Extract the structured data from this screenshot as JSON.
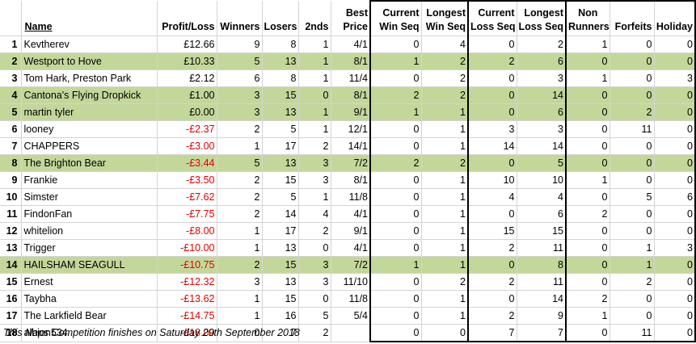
{
  "headers": {
    "num": "",
    "name": "Name",
    "profit_loss": "Profit/Loss",
    "winners": "Winners",
    "losers": "Losers",
    "seconds": "2nds",
    "best_price": [
      "Best",
      "Price"
    ],
    "current_win_seq": [
      "Current",
      "Win Seq"
    ],
    "longest_win_seq": [
      "Longest",
      "Win Seq"
    ],
    "current_loss_seq": [
      "Current",
      "Loss Seq"
    ],
    "longest_loss_seq": [
      "Longest",
      "Loss Seq"
    ],
    "non_runners": [
      "Non",
      "Runners"
    ],
    "forfeits": "Forfeits",
    "holiday": "Holiday"
  },
  "highlight_color": "#c4d79b",
  "negative_color": "#e00000",
  "rows": [
    {
      "num": "1",
      "name": "Kevtherev",
      "pl": "£12.66",
      "neg": false,
      "winners": "9",
      "losers": "8",
      "seconds": "1",
      "best": "4/1",
      "cws": "0",
      "lws": "4",
      "cls": "0",
      "lls": "2",
      "nr": "1",
      "forfeits": "0",
      "holiday": "0",
      "highlight": false
    },
    {
      "num": "2",
      "name": "Westport to Hove",
      "pl": "£10.33",
      "neg": false,
      "winners": "5",
      "losers": "13",
      "seconds": "1",
      "best": "8/1",
      "cws": "1",
      "lws": "2",
      "cls": "2",
      "lls": "6",
      "nr": "0",
      "forfeits": "0",
      "holiday": "0",
      "highlight": true
    },
    {
      "num": "3",
      "name": "Tom Hark, Preston Park",
      "pl": "£2.12",
      "neg": false,
      "winners": "6",
      "losers": "8",
      "seconds": "1",
      "best": "11/4",
      "cws": "0",
      "lws": "2",
      "cls": "0",
      "lls": "3",
      "nr": "1",
      "forfeits": "0",
      "holiday": "3",
      "highlight": false
    },
    {
      "num": "4",
      "name": "Cantona's Flying Dropkick",
      "pl": "£1.00",
      "neg": false,
      "winners": "3",
      "losers": "15",
      "seconds": "0",
      "best": "8/1",
      "cws": "2",
      "lws": "2",
      "cls": "0",
      "lls": "14",
      "nr": "0",
      "forfeits": "0",
      "holiday": "0",
      "highlight": true
    },
    {
      "num": "5",
      "name": "martin tyler",
      "pl": "£0.00",
      "neg": false,
      "winners": "3",
      "losers": "13",
      "seconds": "1",
      "best": "9/1",
      "cws": "1",
      "lws": "1",
      "cls": "0",
      "lls": "6",
      "nr": "0",
      "forfeits": "2",
      "holiday": "0",
      "highlight": true
    },
    {
      "num": "6",
      "name": "looney",
      "pl": "-£2.37",
      "neg": true,
      "winners": "2",
      "losers": "5",
      "seconds": "1",
      "best": "12/1",
      "cws": "0",
      "lws": "1",
      "cls": "3",
      "lls": "3",
      "nr": "0",
      "forfeits": "11",
      "holiday": "0",
      "highlight": false
    },
    {
      "num": "7",
      "name": "CHAPPERS",
      "pl": "-£3.00",
      "neg": true,
      "winners": "1",
      "losers": "17",
      "seconds": "2",
      "best": "14/1",
      "cws": "0",
      "lws": "1",
      "cls": "14",
      "lls": "14",
      "nr": "0",
      "forfeits": "0",
      "holiday": "0",
      "highlight": false
    },
    {
      "num": "8",
      "name": "The Brighton Bear",
      "pl": "-£3.44",
      "neg": true,
      "winners": "5",
      "losers": "13",
      "seconds": "3",
      "best": "7/2",
      "cws": "2",
      "lws": "2",
      "cls": "0",
      "lls": "5",
      "nr": "0",
      "forfeits": "0",
      "holiday": "0",
      "highlight": true
    },
    {
      "num": "9",
      "name": "Frankie",
      "pl": "-£3.50",
      "neg": true,
      "winners": "2",
      "losers": "15",
      "seconds": "3",
      "best": "8/1",
      "cws": "0",
      "lws": "1",
      "cls": "10",
      "lls": "10",
      "nr": "1",
      "forfeits": "0",
      "holiday": "0",
      "highlight": false
    },
    {
      "num": "10",
      "name": "Simster",
      "pl": "-£7.62",
      "neg": true,
      "winners": "2",
      "losers": "5",
      "seconds": "1",
      "best": "11/8",
      "cws": "0",
      "lws": "1",
      "cls": "4",
      "lls": "4",
      "nr": "0",
      "forfeits": "5",
      "holiday": "6",
      "highlight": false
    },
    {
      "num": "11",
      "name": "FindonFan",
      "pl": "-£7.75",
      "neg": true,
      "winners": "2",
      "losers": "14",
      "seconds": "4",
      "best": "4/1",
      "cws": "0",
      "lws": "1",
      "cls": "0",
      "lls": "6",
      "nr": "2",
      "forfeits": "0",
      "holiday": "0",
      "highlight": false
    },
    {
      "num": "12",
      "name": "whitelion",
      "pl": "-£8.00",
      "neg": true,
      "winners": "1",
      "losers": "17",
      "seconds": "2",
      "best": "9/1",
      "cws": "0",
      "lws": "1",
      "cls": "15",
      "lls": "15",
      "nr": "0",
      "forfeits": "0",
      "holiday": "0",
      "highlight": false
    },
    {
      "num": "13",
      "name": "Trigger",
      "pl": "-£10.00",
      "neg": true,
      "winners": "1",
      "losers": "13",
      "seconds": "0",
      "best": "4/1",
      "cws": "0",
      "lws": "1",
      "cls": "2",
      "lls": "11",
      "nr": "0",
      "forfeits": "1",
      "holiday": "3",
      "highlight": false
    },
    {
      "num": "14",
      "name": "HAILSHAM SEAGULL",
      "pl": "-£10.75",
      "neg": true,
      "winners": "2",
      "losers": "15",
      "seconds": "3",
      "best": "7/2",
      "cws": "1",
      "lws": "1",
      "cls": "0",
      "lls": "8",
      "nr": "0",
      "forfeits": "1",
      "holiday": "0",
      "highlight": true
    },
    {
      "num": "15",
      "name": "Ernest",
      "pl": "-£12.32",
      "neg": true,
      "winners": "3",
      "losers": "13",
      "seconds": "3",
      "best": "11/10",
      "cws": "0",
      "lws": "2",
      "cls": "2",
      "lls": "11",
      "nr": "0",
      "forfeits": "2",
      "holiday": "0",
      "highlight": false
    },
    {
      "num": "16",
      "name": "Taybha",
      "pl": "-£13.62",
      "neg": true,
      "winners": "1",
      "losers": "15",
      "seconds": "0",
      "best": "11/8",
      "cws": "0",
      "lws": "1",
      "cls": "0",
      "lls": "14",
      "nr": "2",
      "forfeits": "0",
      "holiday": "0",
      "highlight": false
    },
    {
      "num": "17",
      "name": "The Larkfield Bear",
      "pl": "-£14.75",
      "neg": true,
      "winners": "1",
      "losers": "16",
      "seconds": "5",
      "best": "5/4",
      "cws": "0",
      "lws": "1",
      "cls": "2",
      "lls": "9",
      "nr": "1",
      "forfeits": "0",
      "holiday": "0",
      "highlight": false
    },
    {
      "num": "18",
      "name": "albion534",
      "pl": "-£18.00",
      "neg": true,
      "winners": "0",
      "losers": "7",
      "seconds": "2",
      "best": "",
      "cws": "0",
      "lws": "0",
      "cls": "7",
      "lls": "7",
      "nr": "0",
      "forfeits": "11",
      "holiday": "0",
      "highlight": false
    }
  ],
  "footnote": "This Naps Competition finishes on Saturday 29th September 2018"
}
